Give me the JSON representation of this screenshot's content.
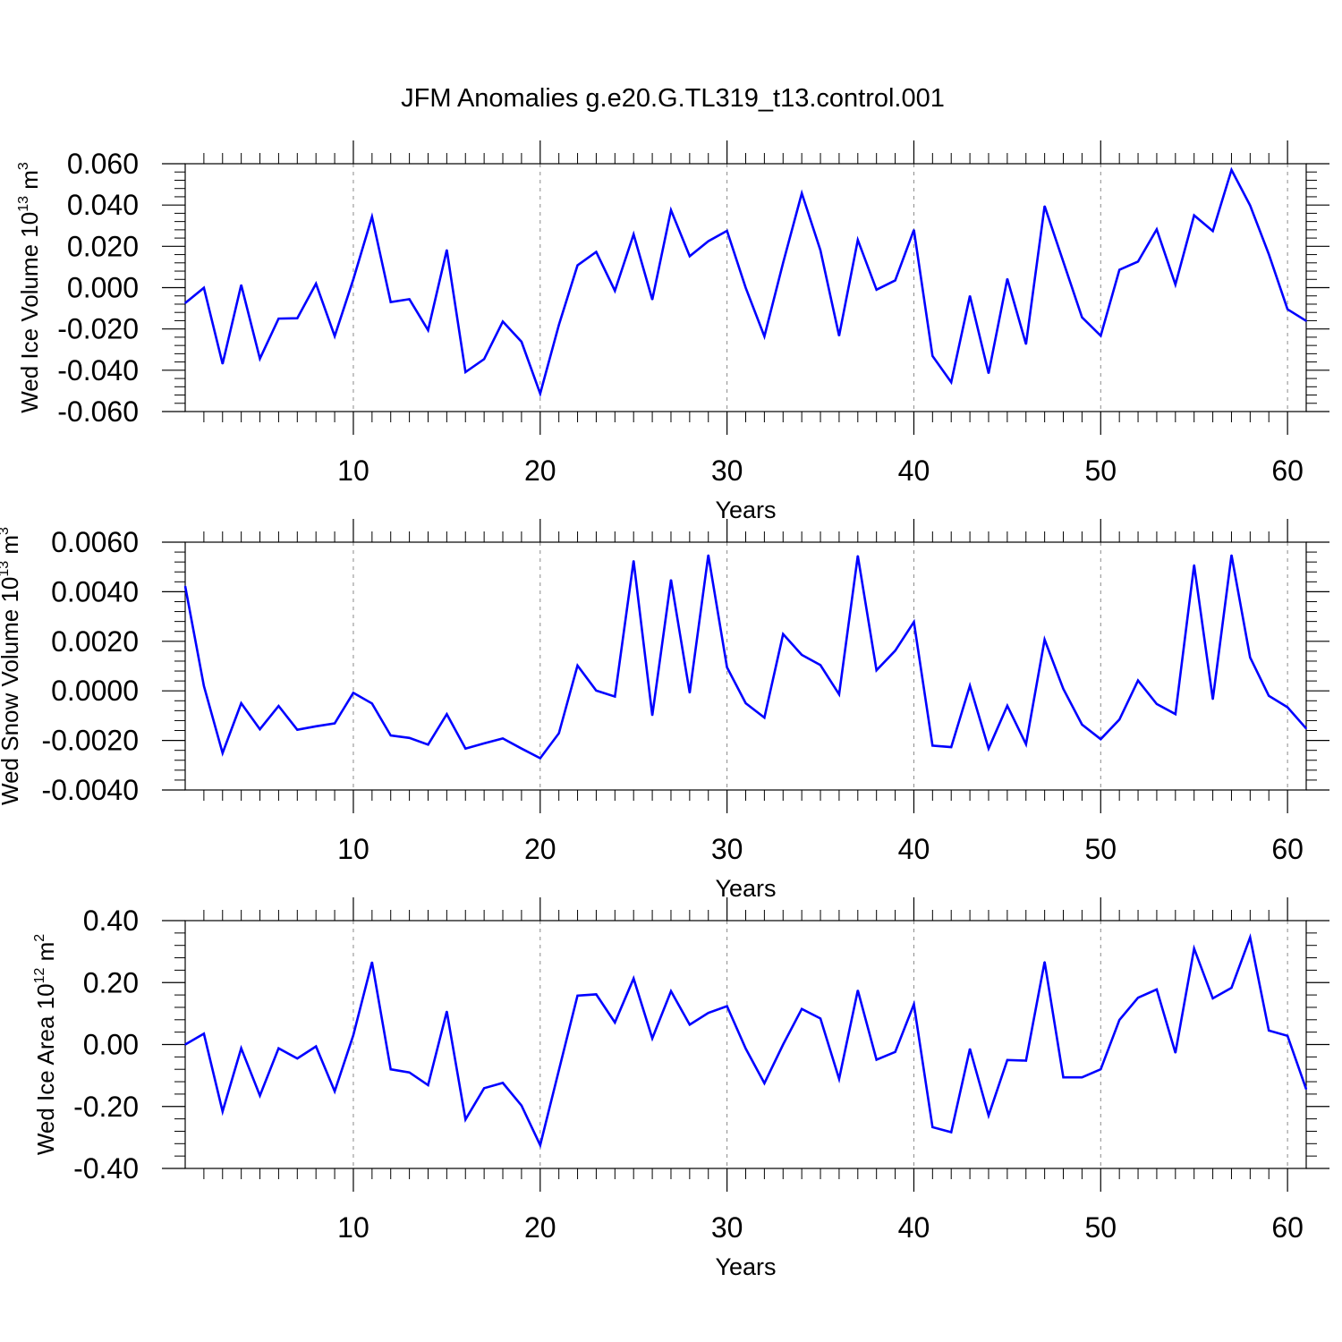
{
  "title": "JFM Anomalies g.e20.G.TL319_t13.control.001",
  "colors": {
    "line": "#0000ff",
    "frame": "#000000",
    "grid": "#8a8a8a",
    "background": "#ffffff"
  },
  "chart_data": [
    {
      "type": "line",
      "xlabel": "Years",
      "ylabel": {
        "text": "Wed Ice Volume 10",
        "exponent": "13",
        "unit": " m",
        "unit_exponent": "3"
      },
      "xlim": [
        1,
        61
      ],
      "ylim": [
        -0.06,
        0.06
      ],
      "x_ticks": [
        10,
        20,
        30,
        40,
        50,
        60
      ],
      "x_tick_labels": [
        "10",
        "20",
        "30",
        "40",
        "50",
        "60"
      ],
      "y_ticks": [
        -0.06,
        -0.04,
        -0.02,
        0.0,
        0.02,
        0.04,
        0.06
      ],
      "y_tick_labels": [
        "-0.060",
        "-0.040",
        "-0.020",
        "0.000",
        "0.020",
        "0.040",
        "0.060"
      ],
      "grid": "vertical dashed at major x ticks",
      "series": [
        {
          "x": [
            1,
            2,
            3,
            4,
            5,
            6,
            7,
            8,
            9,
            10,
            11,
            12,
            13,
            14,
            15,
            16,
            17,
            18,
            19,
            20,
            21,
            22,
            23,
            24,
            25,
            26,
            27,
            28,
            29,
            30,
            31,
            32,
            33,
            34,
            35,
            36,
            37,
            38,
            39,
            40,
            41,
            42,
            43,
            44,
            45,
            46,
            47,
            48,
            49,
            50,
            51,
            52,
            53,
            54,
            55,
            56,
            57,
            58,
            59,
            60,
            61
          ],
          "values": [
            -0.0075,
            -0.0001,
            -0.0369,
            0.0013,
            -0.0344,
            -0.015,
            -0.0148,
            0.0019,
            -0.0235,
            0.004,
            0.0343,
            -0.007,
            -0.0056,
            -0.0206,
            0.0183,
            -0.0409,
            -0.0346,
            -0.0164,
            -0.0262,
            -0.0513,
            -0.018,
            0.0108,
            0.0173,
            -0.0015,
            0.0258,
            -0.0058,
            0.0375,
            0.0152,
            0.0225,
            0.0275,
            -0.0001,
            -0.0236,
            0.012,
            0.0457,
            0.0181,
            -0.0233,
            0.0231,
            -0.001,
            0.0035,
            0.028,
            -0.0331,
            -0.0458,
            -0.004,
            -0.0415,
            0.0043,
            -0.0274,
            0.0395,
            0.0125,
            -0.0144,
            -0.0233,
            0.0086,
            0.0126,
            0.0282,
            0.0015,
            0.035,
            0.0274,
            0.057,
            0.0398,
            0.0162,
            -0.0105,
            -0.0161
          ]
        }
      ]
    },
    {
      "type": "line",
      "xlabel": "Years",
      "ylabel": {
        "text": "Wed Snow Volume 10",
        "exponent": "13",
        "unit": " m",
        "unit_exponent": "3"
      },
      "xlim": [
        1,
        61
      ],
      "ylim": [
        -0.004,
        0.006
      ],
      "x_ticks": [
        10,
        20,
        30,
        40,
        50,
        60
      ],
      "x_tick_labels": [
        "10",
        "20",
        "30",
        "40",
        "50",
        "60"
      ],
      "y_ticks": [
        -0.004,
        -0.002,
        0.0,
        0.002,
        0.004,
        0.006
      ],
      "y_tick_labels": [
        "-0.0040",
        "-0.0020",
        "0.0000",
        "0.0020",
        "0.0040",
        "0.0060"
      ],
      "grid": "vertical dashed at major x ticks",
      "series": [
        {
          "x": [
            1,
            2,
            3,
            4,
            5,
            6,
            7,
            8,
            9,
            10,
            11,
            12,
            13,
            14,
            15,
            16,
            17,
            18,
            19,
            20,
            21,
            22,
            23,
            24,
            25,
            26,
            27,
            28,
            29,
            30,
            31,
            32,
            33,
            34,
            35,
            36,
            37,
            38,
            39,
            40,
            41,
            42,
            43,
            44,
            45,
            46,
            47,
            48,
            49,
            50,
            51,
            52,
            53,
            54,
            55,
            56,
            57,
            58,
            59,
            60,
            61
          ],
          "values": [
            0.00422,
            0.0002,
            -0.00251,
            -0.0005,
            -0.00155,
            -0.00061,
            -0.00157,
            -0.00143,
            -0.00131,
            -8e-05,
            -0.00051,
            -0.0018,
            -0.0019,
            -0.00217,
            -0.00094,
            -0.00233,
            -0.00212,
            -0.00192,
            -0.00233,
            -0.00272,
            -0.00171,
            0.00102,
            1e-05,
            -0.00023,
            0.00525,
            -0.00099,
            0.00448,
            -8e-05,
            0.00548,
            0.00095,
            -0.0005,
            -0.00108,
            0.00229,
            0.00145,
            0.00104,
            -0.00014,
            0.00545,
            0.00083,
            0.00162,
            0.00278,
            -0.00221,
            -0.00227,
            0.00021,
            -0.00233,
            -0.0006,
            -0.00215,
            0.00207,
            8e-05,
            -0.00136,
            -0.00195,
            -0.00116,
            0.00042,
            -0.00053,
            -0.00094,
            0.00508,
            -0.00034,
            0.00548,
            0.00135,
            -0.0002,
            -0.00066,
            -0.00152
          ]
        }
      ]
    },
    {
      "type": "line",
      "xlabel": "Years",
      "ylabel": {
        "text": "Wed Ice Area 10",
        "exponent": "12",
        "unit": " m",
        "unit_exponent": "2"
      },
      "xlim": [
        1,
        61
      ],
      "ylim": [
        -0.4,
        0.4
      ],
      "x_ticks": [
        10,
        20,
        30,
        40,
        50,
        60
      ],
      "x_tick_labels": [
        "10",
        "20",
        "30",
        "40",
        "50",
        "60"
      ],
      "y_ticks": [
        -0.4,
        -0.2,
        0.0,
        0.2,
        0.4
      ],
      "y_tick_labels": [
        "-0.40",
        "-0.20",
        "0.00",
        "0.20",
        "0.40"
      ],
      "grid": "vertical dashed at major x ticks",
      "series": [
        {
          "x": [
            1,
            2,
            3,
            4,
            5,
            6,
            7,
            8,
            9,
            10,
            11,
            12,
            13,
            14,
            15,
            16,
            17,
            18,
            19,
            20,
            21,
            22,
            23,
            24,
            25,
            26,
            27,
            28,
            29,
            30,
            31,
            32,
            33,
            34,
            35,
            36,
            37,
            38,
            39,
            40,
            41,
            42,
            43,
            44,
            45,
            46,
            47,
            48,
            49,
            50,
            51,
            52,
            53,
            54,
            55,
            56,
            57,
            58,
            59,
            60,
            61
          ],
          "values": [
            0.0,
            0.035,
            -0.216,
            -0.012,
            -0.165,
            -0.012,
            -0.045,
            -0.006,
            -0.151,
            0.03,
            0.266,
            -0.08,
            -0.09,
            -0.131,
            0.107,
            -0.242,
            -0.141,
            -0.124,
            -0.197,
            -0.325,
            -0.083,
            0.158,
            0.162,
            0.071,
            0.213,
            0.02,
            0.172,
            0.064,
            0.102,
            0.124,
            -0.013,
            -0.125,
            0.0,
            0.115,
            0.084,
            -0.111,
            0.175,
            -0.049,
            -0.024,
            0.13,
            -0.267,
            -0.283,
            -0.014,
            -0.229,
            -0.05,
            -0.052,
            0.267,
            -0.106,
            -0.106,
            -0.08,
            0.079,
            0.151,
            0.178,
            -0.027,
            0.31,
            0.149,
            0.183,
            0.346,
            0.045,
            0.028,
            -0.144
          ]
        }
      ]
    }
  ]
}
